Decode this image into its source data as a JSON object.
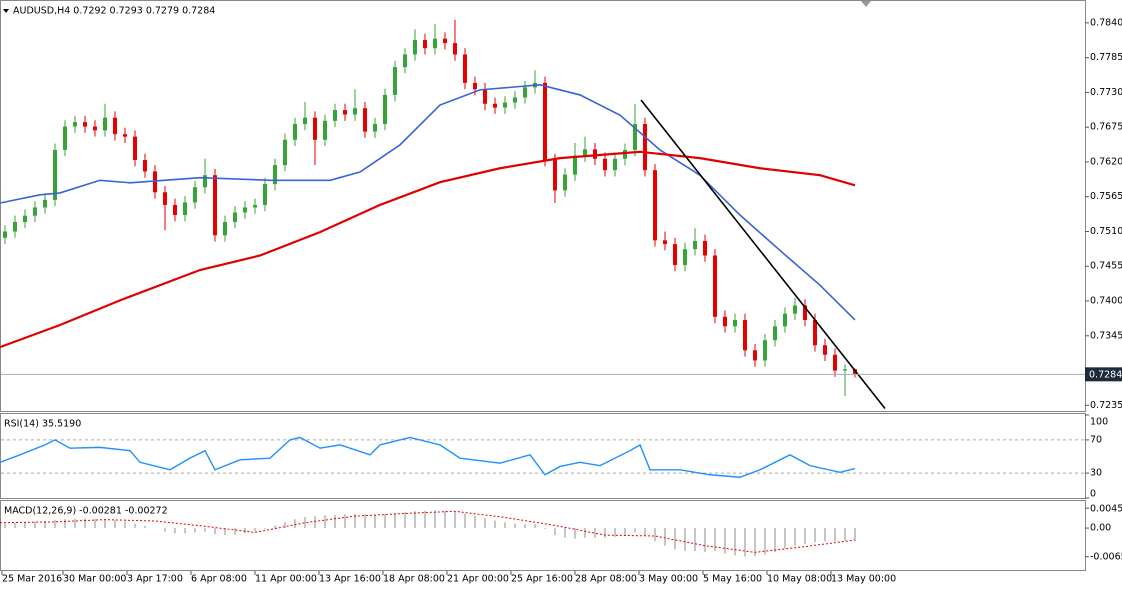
{
  "chart_data": [
    {
      "type": "candlestick",
      "title": "AUDUSD,H4 0.7292 0.7293 0.7279 0.7284",
      "up_color": "#37a437",
      "down_color": "#e60000",
      "xlim": [
        -0.5,
        108
      ],
      "ylim": [
        0.7226,
        0.7873
      ],
      "yticks": [
        {
          "value": 0.784,
          "label": "0.7840"
        },
        0.7785,
        {
          "value": 0.773,
          "label": "0.7730"
        },
        0.7675,
        {
          "value": 0.762,
          "label": "0.7620"
        },
        0.7565,
        {
          "value": 0.751,
          "label": "0.7510"
        },
        0.7455,
        {
          "value": 0.74,
          "label": "0.7400"
        },
        0.7345,
        0.7235
      ],
      "open": [
        0.75,
        0.751,
        0.7525,
        0.7535,
        0.7548,
        0.756,
        0.7639,
        0.7676,
        0.7683,
        0.7676,
        0.767,
        0.769,
        0.7664,
        0.766,
        0.7623,
        0.7605,
        0.7572,
        0.7552,
        0.7536,
        0.7556,
        0.758,
        0.7599,
        0.7504,
        0.7525,
        0.754,
        0.7548,
        0.7552,
        0.7585,
        0.7615,
        0.7655,
        0.768,
        0.769,
        0.7655,
        0.7685,
        0.7702,
        0.7695,
        0.7705,
        0.7668,
        0.768,
        0.7726,
        0.777,
        0.779,
        0.7813,
        0.78,
        0.7815,
        0.7808,
        0.779,
        0.7745,
        0.7735,
        0.7712,
        0.7706,
        0.7714,
        0.7722,
        0.7738,
        0.7745,
        0.7623,
        0.7575,
        0.76,
        0.763,
        0.764,
        0.7625,
        0.7607,
        0.7625,
        0.7639,
        0.768,
        0.7607,
        0.7496,
        0.749,
        0.7457,
        0.7482,
        0.7495,
        0.7472,
        0.7375,
        0.736,
        0.737,
        0.7322,
        0.7306,
        0.7338,
        0.736,
        0.738,
        0.7393,
        0.737,
        0.733,
        0.7315,
        0.729,
        0.7292
      ],
      "high": [
        0.752,
        0.7535,
        0.7545,
        0.7558,
        0.757,
        0.7649,
        0.7686,
        0.7693,
        0.7693,
        0.7686,
        0.7712,
        0.77,
        0.7674,
        0.767,
        0.7633,
        0.7615,
        0.7582,
        0.7562,
        0.7566,
        0.759,
        0.7625,
        0.7609,
        0.7535,
        0.755,
        0.7558,
        0.7562,
        0.7595,
        0.7625,
        0.7665,
        0.769,
        0.7715,
        0.77,
        0.7695,
        0.7712,
        0.7712,
        0.7735,
        0.7715,
        0.769,
        0.7736,
        0.778,
        0.78,
        0.783,
        0.7823,
        0.7838,
        0.7825,
        0.7845,
        0.78,
        0.7755,
        0.7745,
        0.7722,
        0.7724,
        0.7732,
        0.7748,
        0.7765,
        0.7755,
        0.7633,
        0.761,
        0.765,
        0.766,
        0.765,
        0.7635,
        0.7635,
        0.7649,
        0.7712,
        0.769,
        0.7617,
        0.751,
        0.75,
        0.7492,
        0.7515,
        0.7505,
        0.7482,
        0.7385,
        0.738,
        0.738,
        0.7332,
        0.7348,
        0.737,
        0.739,
        0.7405,
        0.7403,
        0.738,
        0.734,
        0.7325,
        0.73,
        0.7293
      ],
      "low": [
        0.749,
        0.75,
        0.7515,
        0.7525,
        0.7538,
        0.755,
        0.7629,
        0.7666,
        0.7666,
        0.766,
        0.766,
        0.7654,
        0.765,
        0.7613,
        0.7595,
        0.7562,
        0.7512,
        0.7526,
        0.7526,
        0.7546,
        0.757,
        0.7494,
        0.7494,
        0.7515,
        0.753,
        0.7538,
        0.7542,
        0.7575,
        0.7605,
        0.7645,
        0.767,
        0.7615,
        0.7645,
        0.7675,
        0.7685,
        0.7685,
        0.7658,
        0.7658,
        0.767,
        0.7716,
        0.776,
        0.778,
        0.779,
        0.779,
        0.7798,
        0.778,
        0.7735,
        0.7725,
        0.7702,
        0.7696,
        0.7696,
        0.7704,
        0.7712,
        0.7728,
        0.7613,
        0.7555,
        0.7565,
        0.759,
        0.762,
        0.7615,
        0.7597,
        0.7597,
        0.7615,
        0.7629,
        0.7597,
        0.7486,
        0.748,
        0.7447,
        0.7447,
        0.7472,
        0.7462,
        0.7365,
        0.735,
        0.735,
        0.7312,
        0.7296,
        0.7296,
        0.7328,
        0.735,
        0.737,
        0.736,
        0.732,
        0.7305,
        0.728,
        0.725,
        0.7279
      ],
      "close": [
        0.751,
        0.7525,
        0.7535,
        0.7548,
        0.756,
        0.7639,
        0.7676,
        0.7683,
        0.7676,
        0.767,
        0.769,
        0.7664,
        0.766,
        0.7623,
        0.7605,
        0.7572,
        0.7552,
        0.7536,
        0.7556,
        0.758,
        0.7599,
        0.7504,
        0.7525,
        0.754,
        0.7548,
        0.7552,
        0.7585,
        0.7615,
        0.7655,
        0.768,
        0.769,
        0.7655,
        0.7685,
        0.7702,
        0.7695,
        0.7705,
        0.7668,
        0.768,
        0.7726,
        0.777,
        0.779,
        0.7813,
        0.78,
        0.7815,
        0.7808,
        0.779,
        0.7745,
        0.7735,
        0.7712,
        0.7706,
        0.7714,
        0.7722,
        0.7738,
        0.7745,
        0.7623,
        0.7575,
        0.76,
        0.763,
        0.764,
        0.7625,
        0.7607,
        0.7625,
        0.7639,
        0.768,
        0.7607,
        0.7496,
        0.749,
        0.7457,
        0.7482,
        0.7495,
        0.7472,
        0.7375,
        0.736,
        0.737,
        0.7322,
        0.7306,
        0.7338,
        0.736,
        0.738,
        0.7393,
        0.737,
        0.733,
        0.7315,
        0.729,
        0.7292,
        0.7284
      ],
      "series": [
        {
          "color": "#3a62d6",
          "width": 1.6,
          "x": [
            -0.5,
            3.5,
            5.5,
            9.5,
            12.5,
            19.5,
            26.5,
            32.5,
            35.5,
            39.5,
            43.5,
            47.5,
            53.5,
            57.5,
            61.5,
            65.5,
            69.5,
            73.5,
            77.5,
            81.5,
            85
          ],
          "values": [
            0.7555,
            0.7568,
            0.7571,
            0.7591,
            0.7587,
            0.7595,
            0.7591,
            0.7591,
            0.7604,
            0.7647,
            0.771,
            0.7734,
            0.7742,
            0.7726,
            0.7694,
            0.7639,
            0.7599,
            0.7536,
            0.748,
            0.7425,
            0.737
          ]
        },
        {
          "color": "#e00000",
          "width": 2.2,
          "x": [
            -0.5,
            5.5,
            11.5,
            19.5,
            25.5,
            31.5,
            37.5,
            43.5,
            49.5,
            55.5,
            63.5,
            69.5,
            75.5,
            81.5,
            85
          ],
          "values": [
            0.7327,
            0.7362,
            0.7401,
            0.7449,
            0.7472,
            0.7509,
            0.7552,
            0.7588,
            0.761,
            0.7626,
            0.7636,
            0.7626,
            0.761,
            0.7599,
            0.7583
          ]
        },
        {
          "color": "#000000",
          "width": 1.6,
          "x": [
            63.6,
            88
          ],
          "values": [
            0.7718,
            0.723
          ]
        }
      ],
      "last_price": 0.7284,
      "last_price_color": "#9fb0c2"
    },
    {
      "type": "line",
      "title": "RSI(14) 35.5190",
      "xlim": [
        -0.5,
        108
      ],
      "ylim": [
        0,
        100
      ],
      "yticks": [
        100,
        70,
        30,
        0
      ],
      "grid": true,
      "series": [
        {
          "color": "#1e90ff",
          "width": 1.4,
          "x": [
            -0.5,
            1.5,
            4,
            5,
            6.5,
            9.5,
            12.5,
            13.5,
            16.5,
            18.5,
            20,
            21,
            23.5,
            26.5,
            28.5,
            29.5,
            31.5,
            33.5,
            36.5,
            37.5,
            40.5,
            43.5,
            45.5,
            49.5,
            52.5,
            54,
            55.5,
            57.5,
            59.5,
            62.5,
            63.5,
            64.5,
            67.5,
            70.5,
            73.5,
            75.5,
            78.5,
            80.5,
            83.5,
            85
          ],
          "values": [
            43,
            52,
            64,
            70,
            60,
            61,
            57,
            43,
            34,
            48,
            57,
            34,
            46,
            48,
            70,
            73,
            60,
            64,
            52,
            64,
            73,
            64,
            48,
            42,
            52,
            28,
            38,
            43,
            39,
            57,
            64,
            34,
            34,
            28,
            25,
            34,
            52,
            39,
            31,
            35.519
          ]
        }
      ]
    },
    {
      "type": "bar",
      "title": "MACD(12,26,9) -0.00281 -0.00272",
      "color": "#b4b4b4",
      "xlim": [
        -0.5,
        108
      ],
      "ylim": [
        -0.0095,
        0.0059
      ],
      "yticks": [
        0.0045,
        {
          "value": 0,
          "label": "0.00"
        },
        -0.0065
      ],
      "values": [
        0.001,
        0.0012,
        0.0013,
        0.0015,
        0.0016,
        0.0018,
        0.002,
        0.0021,
        0.0022,
        0.0021,
        0.002,
        0.0018,
        0.0015,
        0.001,
        0.0005,
        0,
        -0.0008,
        -0.0012,
        -0.0012,
        -0.001,
        -0.0008,
        -0.0014,
        -0.0016,
        -0.0015,
        -0.0012,
        -0.0008,
        -0.0002,
        0.0006,
        0.0014,
        0.002,
        0.0025,
        0.0027,
        0.0029,
        0.003,
        0.0031,
        0.0032,
        0.0031,
        0.003,
        0.0032,
        0.0034,
        0.0036,
        0.0038,
        0.0039,
        0.004,
        0.0039,
        0.0037,
        0.0033,
        0.0028,
        0.0022,
        0.0017,
        0.0013,
        0.001,
        0.0009,
        0.0009,
        -0.0002,
        -0.0016,
        -0.0022,
        -0.0024,
        -0.0022,
        -0.0022,
        -0.0022,
        -0.002,
        -0.0016,
        -0.001,
        -0.0018,
        -0.003,
        -0.004,
        -0.0048,
        -0.0052,
        -0.0052,
        -0.0054,
        -0.0052,
        -0.0058,
        -0.0062,
        -0.0064,
        -0.0064,
        -0.006,
        -0.0054,
        -0.0046,
        -0.004,
        -0.0036,
        -0.0032,
        -0.003,
        -0.003,
        -0.0029,
        -0.00281
      ],
      "series": [
        {
          "color": "#e00000",
          "width": 1,
          "dash": true,
          "x": [
            -0.5,
            5,
            10,
            15,
            20,
            25,
            30,
            35,
            40,
            45,
            50,
            55,
            60,
            65,
            70,
            75,
            80,
            85
          ],
          "values": [
            0.0012,
            0.0014,
            0.0019,
            0.0016,
            0.0004,
            -0.001,
            0.0012,
            0.0027,
            0.0033,
            0.0038,
            0.0024,
            0.0006,
            -0.0016,
            -0.0018,
            -0.004,
            -0.0055,
            -0.0042,
            -0.00272
          ]
        }
      ],
      "xticks": [
        {
          "value": -0.3,
          "label": "25 Mar 2016"
        },
        {
          "value": 5.8,
          "label": "30 Mar 00:00"
        },
        {
          "value": 12.2,
          "label": "3 Apr 17:00"
        },
        {
          "value": 18.6,
          "label": "6 Apr 08:00"
        },
        {
          "value": 25,
          "label": "11 Apr 00:00"
        },
        {
          "value": 31.4,
          "label": "13 Apr 16:00"
        },
        {
          "value": 37.8,
          "label": "18 Apr 08:00"
        },
        {
          "value": 44.2,
          "label": "21 Apr 00:00"
        },
        {
          "value": 50.6,
          "label": "25 Apr 16:00"
        },
        {
          "value": 57,
          "label": "28 Apr 08:00"
        },
        {
          "value": 63.4,
          "label": "3 May 00:00"
        },
        {
          "value": 69.8,
          "label": "5 May 16:00"
        },
        {
          "value": 76.2,
          "label": "10 May 08:00"
        },
        {
          "value": 82.6,
          "label": "13 May 00:00"
        }
      ]
    }
  ]
}
